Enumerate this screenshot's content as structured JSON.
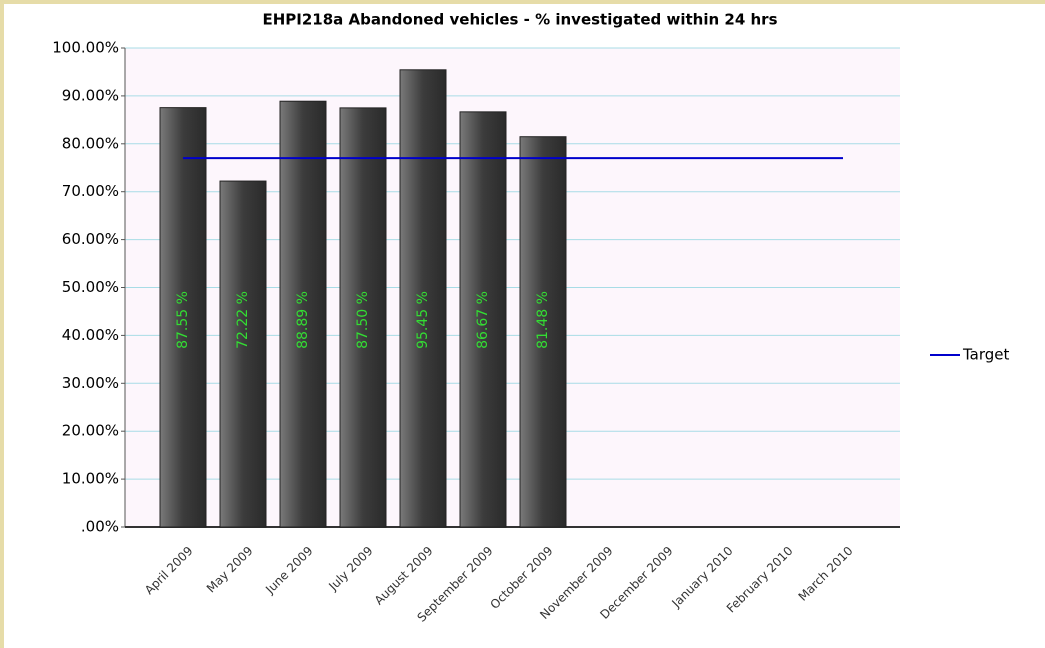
{
  "chart_data": {
    "type": "bar",
    "title": "EHPI218a Abandoned vehicles - % investigated within 24 hrs",
    "categories": [
      "April 2009",
      "May 2009",
      "June 2009",
      "July 2009",
      "August 2009",
      "September 2009",
      "October 2009",
      "November 2009",
      "December 2009",
      "January 2010",
      "February 2010",
      "March 2010"
    ],
    "series": [
      {
        "type": "bar",
        "color": "#555555",
        "values": [
          87.55,
          72.22,
          88.89,
          87.5,
          95.45,
          86.67,
          81.48,
          null,
          null,
          null,
          null,
          null
        ],
        "value_labels": [
          "87.55 %",
          "72.22 %",
          "88.89 %",
          "87.50 %",
          "95.45 %",
          "86.67 %",
          "81.48 %",
          null,
          null,
          null,
          null,
          null
        ]
      },
      {
        "type": "line",
        "name": "Target",
        "color": "#0000cc",
        "values": [
          77,
          77,
          77,
          77,
          77,
          77,
          77,
          77,
          77,
          77,
          77,
          77
        ]
      }
    ],
    "ylim": [
      0,
      100
    ],
    "yticks": [
      {
        "value": 0,
        "label": ".00%"
      },
      {
        "value": 10,
        "label": "10.00%"
      },
      {
        "value": 20,
        "label": "20.00%"
      },
      {
        "value": 30,
        "label": "30.00%"
      },
      {
        "value": 40,
        "label": "40.00%"
      },
      {
        "value": 50,
        "label": "50.00%"
      },
      {
        "value": 60,
        "label": "60.00%"
      },
      {
        "value": 70,
        "label": "70.00%"
      },
      {
        "value": 80,
        "label": "80.00%"
      },
      {
        "value": 90,
        "label": "90.00%"
      },
      {
        "value": 100,
        "label": "100.00%"
      }
    ],
    "grid": true,
    "legend": "right"
  }
}
